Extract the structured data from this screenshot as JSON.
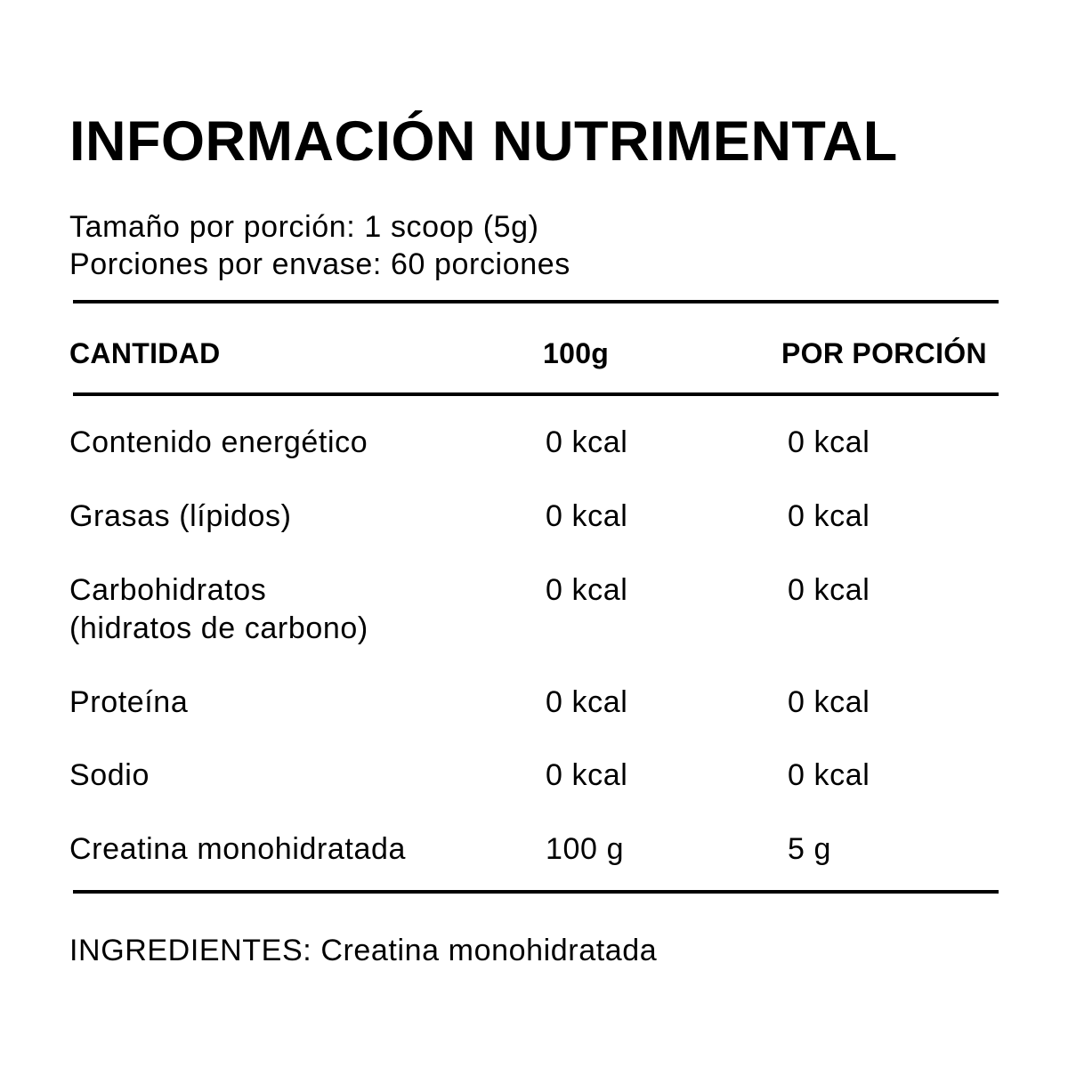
{
  "title": "INFORMACIÓN NUTRIMENTAL",
  "serving_size": "Tamaño por porción: 1 scoop (5g)",
  "servings_per_container": "Porciones por envase: 60 porciones",
  "table": {
    "headers": [
      "CANTIDAD",
      "100g",
      "POR PORCIÓN"
    ],
    "rows": [
      {
        "name": "Contenido energético",
        "name2": "",
        "per100": "0 kcal",
        "perServing": "0 kcal"
      },
      {
        "name": "Grasas (lípidos)",
        "name2": "",
        "per100": "0 kcal",
        "perServing": "0 kcal"
      },
      {
        "name": "Carbohidratos",
        "name2": "(hidratos de carbono)",
        "per100": "0 kcal",
        "perServing": "0 kcal"
      },
      {
        "name": "Proteína",
        "name2": "",
        "per100": "0 kcal",
        "perServing": "0 kcal"
      },
      {
        "name": "Sodio",
        "name2": "",
        "per100": "0 kcal",
        "perServing": "0 kcal"
      },
      {
        "name": "Creatina monohidratada",
        "name2": "",
        "per100": "100 g",
        "perServing": "5 g"
      }
    ]
  },
  "ingredients": "INGREDIENTES: Creatina monohidratada"
}
